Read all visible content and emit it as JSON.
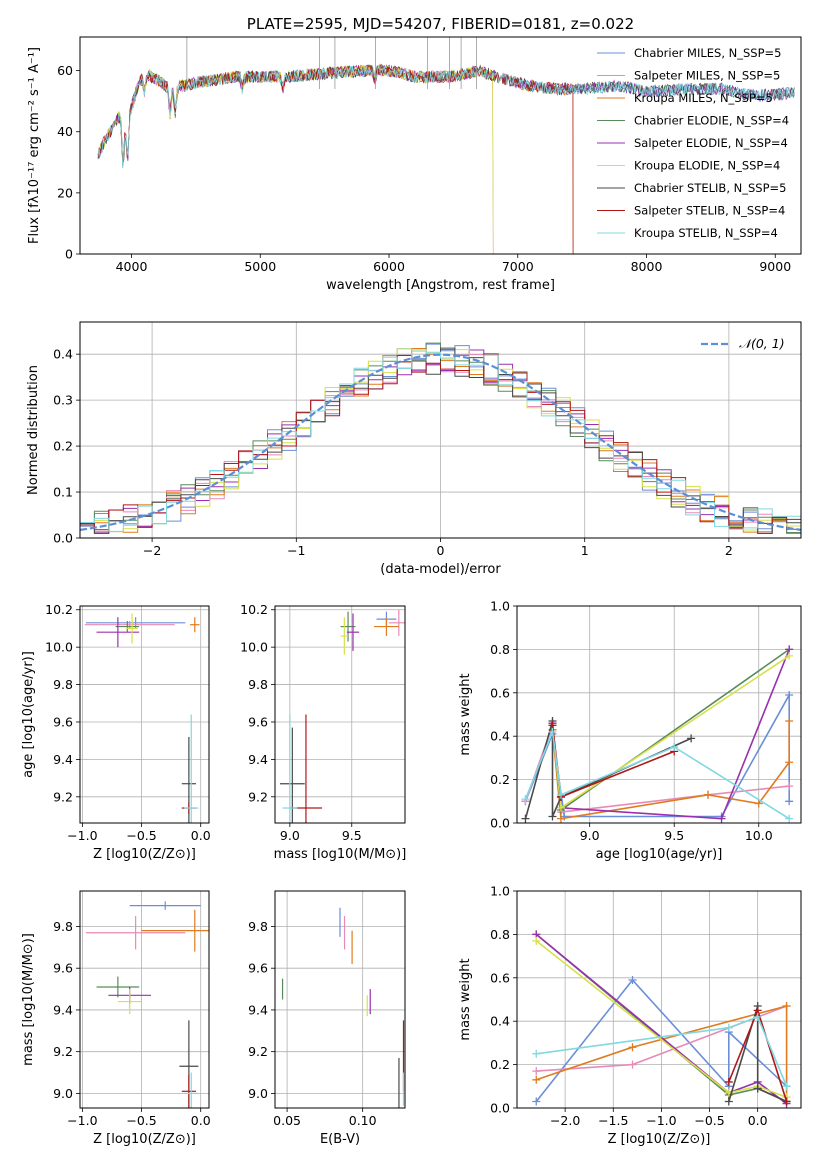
{
  "colors": {
    "miles_chabrier": "#6a8fd8",
    "miles_salpeter": "#e88ab8",
    "miles_kroupa": "#e07b20",
    "elodie_chabrier": "#5a8a5a",
    "elodie_salpeter": "#9a30b0",
    "elodie_kroupa": "#d6e04a",
    "stelib_chabrier": "#4a4a4a",
    "stelib_salpeter": "#b01818",
    "stelib_kroupa": "#80d8e0"
  },
  "chart_data": [
    {
      "id": "spectrum",
      "type": "line",
      "title": "PLATE=2595, MJD=54207, FIBERID=0181, z=0.022",
      "xlabel": "wavelength [Angstrom, rest frame]",
      "ylabel": "Flux [fλ10⁻¹⁷ erg cm⁻² s⁻¹ A⁻¹]",
      "xlim": [
        3600,
        9200
      ],
      "ylim": [
        0,
        71
      ],
      "xticks": [
        "4000",
        "5000",
        "6000",
        "7000",
        "8000",
        "9000"
      ],
      "yticks": [
        "0",
        "20",
        "40",
        "60"
      ],
      "grid": false,
      "legend_position": "top-right",
      "continuum": {
        "x": [
          3740,
          3800,
          3850,
          3900,
          3950,
          4000,
          4050,
          4100,
          4200,
          4300,
          4500,
          4800,
          5000,
          5200,
          5500,
          5800,
          6000,
          6200,
          6500,
          6700,
          6900,
          7100,
          7300,
          7500,
          7800,
          8000,
          8300,
          8600,
          8800,
          9000,
          9150
        ],
        "y": [
          32,
          38,
          41,
          45,
          43,
          48,
          55,
          59,
          57,
          54,
          56,
          58,
          58,
          58,
          59,
          60,
          60,
          58,
          58,
          60,
          57,
          55,
          54,
          54,
          55,
          53,
          54,
          54,
          52,
          52,
          53
        ]
      },
      "series": [
        {
          "name": "Chabrier MILES, N_SSP=5"
        },
        {
          "name": "Salpeter MILES, N_SSP=5"
        },
        {
          "name": "Kroupa MILES, N_SSP=5"
        },
        {
          "name": "Chabrier ELODIE, N_SSP=4"
        },
        {
          "name": "Salpeter ELODIE, N_SSP=4"
        },
        {
          "name": "Kroupa ELODIE, N_SSP=4"
        },
        {
          "name": "Chabrier STELIB, N_SSP=5"
        },
        {
          "name": "Salpeter STELIB, N_SSP=4"
        },
        {
          "name": "Kroupa STELIB, N_SSP=4"
        }
      ]
    },
    {
      "id": "residuals",
      "type": "bar",
      "xlabel": "(data-model)/error",
      "ylabel": "Normed distribution",
      "xlim": [
        -2.5,
        2.5
      ],
      "ylim": [
        0,
        0.47
      ],
      "xticks": [
        "−2",
        "−1",
        "0",
        "1",
        "2"
      ],
      "yticks": [
        "0.0",
        "0.1",
        "0.2",
        "0.3",
        "0.4"
      ],
      "grid": true,
      "legend_position": "top-right",
      "legend": "𝒩(0, 1)",
      "bin_width": 0.1
    },
    {
      "id": "age_vs_Z",
      "type": "scatter",
      "xlabel": "Z [log10(Z/Z⊙)]",
      "ylabel": "age  [log10(age/yr)]",
      "xlim": [
        -1.02,
        0.07
      ],
      "ylim": [
        9.06,
        10.22
      ],
      "xticks": [
        "−1.0",
        "−0.5",
        "0.0"
      ],
      "yticks": [
        "9.2",
        "9.4",
        "9.6",
        "9.8",
        "10.0",
        "10.2"
      ],
      "grid": true,
      "points": [
        {
          "x": -0.55,
          "y": 10.13,
          "xerr": 0.42,
          "yerr": 0.03
        },
        {
          "x": -0.6,
          "y": 10.12,
          "xerr": 0.38,
          "yerr": 0.02
        },
        {
          "x": -0.05,
          "y": 10.12,
          "xerr": 0.04,
          "yerr": 0.04
        },
        {
          "x": -0.62,
          "y": 10.11,
          "xerr": 0.1,
          "yerr": 0.03
        },
        {
          "x": -0.7,
          "y": 10.08,
          "xerr": 0.18,
          "yerr": 0.08
        },
        {
          "x": -0.58,
          "y": 10.1,
          "xerr": 0.05,
          "yerr": 0.08
        },
        {
          "x": -0.1,
          "y": 9.27,
          "xerr": 0.06,
          "yerr": 0.25
        },
        {
          "x": -0.1,
          "y": 9.14,
          "xerr": 0.06,
          "yerr": 0.03
        },
        {
          "x": -0.08,
          "y": 9.14,
          "xerr": 0.06,
          "yerr": 0.5
        }
      ]
    },
    {
      "id": "age_vs_mass",
      "type": "scatter",
      "xlabel": "mass [log10(M/M⊙)]",
      "ylabel": "",
      "xlim": [
        8.88,
        9.93
      ],
      "ylim": [
        9.06,
        10.22
      ],
      "xticks": [
        "9.0",
        "9.5"
      ],
      "yticks": [
        "9.2",
        "9.4",
        "9.6",
        "9.8",
        "10.0",
        "10.2"
      ],
      "grid": true,
      "points": [
        {
          "x": 9.78,
          "y": 10.15,
          "xerr": 0.08,
          "yerr": 0.04
        },
        {
          "x": 9.88,
          "y": 10.13,
          "xerr": 0.08,
          "yerr": 0.07
        },
        {
          "x": 9.78,
          "y": 10.11,
          "xerr": 0.1,
          "yerr": 0.05
        },
        {
          "x": 9.47,
          "y": 10.11,
          "xerr": 0.06,
          "yerr": 0.08
        },
        {
          "x": 9.51,
          "y": 10.08,
          "xerr": 0.05,
          "yerr": 0.1
        },
        {
          "x": 9.44,
          "y": 10.06,
          "xerr": 0.03,
          "yerr": 0.1
        },
        {
          "x": 9.02,
          "y": 9.27,
          "xerr": 0.1,
          "yerr": 0.3
        },
        {
          "x": 9.13,
          "y": 9.14,
          "xerr": 0.13,
          "yerr": 0.5
        },
        {
          "x": 9.0,
          "y": 9.14,
          "xerr": 0.06,
          "yerr": 0.5
        }
      ]
    },
    {
      "id": "weight_vs_age",
      "type": "line",
      "xlabel": "age  [log10(age/yr)]",
      "ylabel": "mass weight",
      "xlim": [
        8.57,
        10.25
      ],
      "ylim": [
        0,
        1.0
      ],
      "xticks": [
        "9.0",
        "9.5",
        "10.0"
      ],
      "yticks": [
        "0.0",
        "0.2",
        "0.4",
        "0.6",
        "0.8",
        "1.0"
      ],
      "grid": true,
      "series": [
        {
          "name": "Chabrier MILES",
          "x": [
            8.62,
            8.78,
            8.85,
            9.78,
            10.18,
            10.18
          ],
          "y": [
            0.1,
            0.41,
            0.03,
            0.03,
            0.59,
            0.1
          ]
        },
        {
          "name": "Salpeter MILES",
          "x": [
            8.62,
            8.78,
            8.83,
            9.7,
            10.18
          ],
          "y": [
            0.1,
            0.45,
            0.05,
            0.13,
            0.17
          ]
        },
        {
          "name": "Kroupa MILES",
          "x": [
            8.78,
            8.83,
            9.7,
            10.0,
            10.18,
            10.18
          ],
          "y": [
            0.43,
            0.02,
            0.13,
            0.09,
            0.28,
            0.47
          ]
        },
        {
          "name": "Chabrier ELODIE",
          "x": [
            8.78,
            8.83,
            10.18
          ],
          "y": [
            0.46,
            0.06,
            0.8
          ]
        },
        {
          "name": "Salpeter ELODIE",
          "x": [
            8.78,
            8.83,
            9.78,
            10.18
          ],
          "y": [
            0.46,
            0.07,
            0.02,
            0.8
          ]
        },
        {
          "name": "Kroupa ELODIE",
          "x": [
            8.78,
            8.83,
            10.18
          ],
          "y": [
            0.45,
            0.07,
            0.77
          ]
        },
        {
          "name": "Chabrier STELIB",
          "x": [
            8.62,
            8.78,
            8.78,
            8.83,
            9.6
          ],
          "y": [
            0.02,
            0.47,
            0.03,
            0.12,
            0.39
          ]
        },
        {
          "name": "Salpeter STELIB",
          "x": [
            8.78,
            8.83,
            9.5
          ],
          "y": [
            0.45,
            0.12,
            0.33
          ]
        },
        {
          "name": "Kroupa STELIB",
          "x": [
            8.62,
            8.78,
            8.83,
            9.5,
            10.18
          ],
          "y": [
            0.11,
            0.42,
            0.13,
            0.35,
            0.02
          ]
        }
      ]
    },
    {
      "id": "mass_vs_Z",
      "type": "scatter",
      "xlabel": "Z [log10(Z/Z⊙)]",
      "ylabel": "mass [log10(M/M⊙)]",
      "xlim": [
        -1.02,
        0.07
      ],
      "ylim": [
        8.93,
        9.97
      ],
      "xticks": [
        "−1.0",
        "−0.5",
        "0.0"
      ],
      "yticks": [
        "9.0",
        "9.2",
        "9.4",
        "9.6",
        "9.8"
      ],
      "grid": true,
      "points": [
        {
          "x": -0.3,
          "y": 9.9,
          "xerr": 0.3,
          "yerr": 0.02
        },
        {
          "x": -0.55,
          "y": 9.77,
          "xerr": 0.42,
          "yerr": 0.08
        },
        {
          "x": -0.05,
          "y": 9.78,
          "xerr": 0.45,
          "yerr": 0.1
        },
        {
          "x": -0.7,
          "y": 9.51,
          "xerr": 0.18,
          "yerr": 0.05
        },
        {
          "x": -0.6,
          "y": 9.47,
          "xerr": 0.18,
          "yerr": 0.04
        },
        {
          "x": -0.6,
          "y": 9.44,
          "xerr": 0.1,
          "yerr": 0.06
        },
        {
          "x": -0.1,
          "y": 9.13,
          "xerr": 0.08,
          "yerr": 0.22
        },
        {
          "x": -0.1,
          "y": 9.01,
          "xerr": 0.06,
          "yerr": 0.08
        },
        {
          "x": -0.08,
          "y": 9.0,
          "xerr": 0.06,
          "yerr": 0.1
        }
      ]
    },
    {
      "id": "mass_vs_ebv",
      "type": "scatter",
      "xlabel": "E(B-V)",
      "ylabel": "",
      "xlim": [
        0.042,
        0.128
      ],
      "ylim": [
        8.93,
        9.97
      ],
      "xticks": [
        "0.05",
        "0.10"
      ],
      "yticks": [
        "9.0",
        "9.2",
        "9.4",
        "9.6",
        "9.8"
      ],
      "grid": true,
      "points": [
        {
          "x": 0.085,
          "y": 9.82,
          "yerr": 0.07
        },
        {
          "x": 0.088,
          "y": 9.77,
          "yerr": 0.08
        },
        {
          "x": 0.093,
          "y": 9.7,
          "yerr": 0.08
        },
        {
          "x": 0.047,
          "y": 9.5,
          "yerr": 0.05
        },
        {
          "x": 0.105,
          "y": 9.44,
          "yerr": 0.06
        },
        {
          "x": 0.103,
          "y": 9.42,
          "yerr": 0.05
        },
        {
          "x": 0.124,
          "y": 9.05,
          "yerr": 0.12
        },
        {
          "x": 0.127,
          "y": 9.18,
          "yerr": 0.17
        },
        {
          "x": 0.127,
          "y": 9.02,
          "yerr": 0.08
        }
      ]
    },
    {
      "id": "weight_vs_Z",
      "type": "line",
      "xlabel": "Z [log10(Z/Z⊙)]",
      "ylabel": "mass weight",
      "xlim": [
        -2.5,
        0.45
      ],
      "ylim": [
        0,
        1.0
      ],
      "xticks": [
        "−2.0",
        "−1.5",
        "−1.0",
        "−0.5",
        "0.0"
      ],
      "yticks": [
        "0.0",
        "0.2",
        "0.4",
        "0.6",
        "0.8",
        "1.0"
      ],
      "grid": true,
      "series": [
        {
          "name": "Chabrier MILES",
          "x": [
            -2.3,
            -1.3,
            -0.3,
            -0.3,
            0.3
          ],
          "y": [
            0.03,
            0.59,
            0.1,
            0.35,
            0.1
          ]
        },
        {
          "name": "Salpeter MILES",
          "x": [
            -2.3,
            -1.3,
            0.3
          ],
          "y": [
            0.17,
            0.2,
            0.47
          ]
        },
        {
          "name": "Kroupa MILES",
          "x": [
            -2.3,
            -1.3,
            0.3,
            0.3
          ],
          "y": [
            0.13,
            0.28,
            0.47,
            0.03
          ]
        },
        {
          "name": "Chabrier ELODIE",
          "x": [
            -2.3,
            -0.3,
            0.0,
            0.3
          ],
          "y": [
            0.8,
            0.06,
            0.09,
            0.03
          ]
        },
        {
          "name": "Salpeter ELODIE",
          "x": [
            -2.3,
            -0.3,
            0.0,
            0.3
          ],
          "y": [
            0.8,
            0.07,
            0.12,
            0.02
          ]
        },
        {
          "name": "Kroupa ELODIE",
          "x": [
            -2.3,
            -0.3,
            0.0,
            0.3
          ],
          "y": [
            0.77,
            0.07,
            0.1,
            0.05
          ]
        },
        {
          "name": "Chabrier STELIB",
          "x": [
            -0.3,
            0.0,
            0.0,
            0.3
          ],
          "y": [
            0.03,
            0.47,
            0.09,
            0.03
          ]
        },
        {
          "name": "Salpeter STELIB",
          "x": [
            -0.3,
            0.0,
            0.3
          ],
          "y": [
            0.12,
            0.45,
            0.03
          ]
        },
        {
          "name": "Kroupa STELIB",
          "x": [
            -2.3,
            -0.3,
            0.0,
            0.3
          ],
          "y": [
            0.25,
            0.37,
            0.42,
            0.1
          ]
        }
      ]
    }
  ]
}
